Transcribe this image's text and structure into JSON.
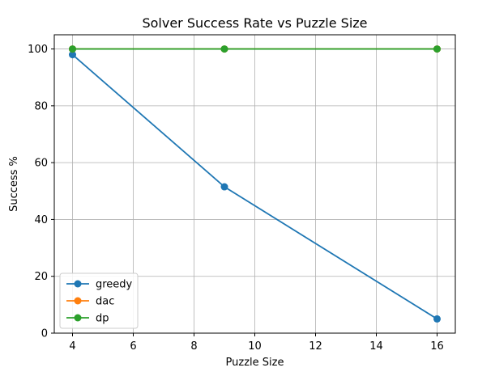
{
  "chart_data": {
    "type": "line",
    "title": "Solver Success Rate vs Puzzle Size",
    "xlabel": "Puzzle Size",
    "ylabel": "Success %",
    "xlim": [
      3.4,
      16.6
    ],
    "ylim": [
      0,
      105
    ],
    "xticks": [
      4,
      6,
      8,
      10,
      12,
      14,
      16
    ],
    "yticks": [
      0,
      20,
      40,
      60,
      80,
      100
    ],
    "grid": true,
    "legend_position": "lower-left",
    "series": [
      {
        "name": "greedy",
        "color": "#1f77b4",
        "x": [
          4,
          9,
          16
        ],
        "y": [
          98,
          51.5,
          5
        ]
      },
      {
        "name": "dac",
        "color": "#ff7f0e",
        "x": [
          4,
          9,
          16
        ],
        "y": [
          100,
          100,
          100
        ]
      },
      {
        "name": "dp",
        "color": "#2ca02c",
        "x": [
          4,
          9,
          16
        ],
        "y": [
          100,
          100,
          100
        ]
      }
    ]
  }
}
